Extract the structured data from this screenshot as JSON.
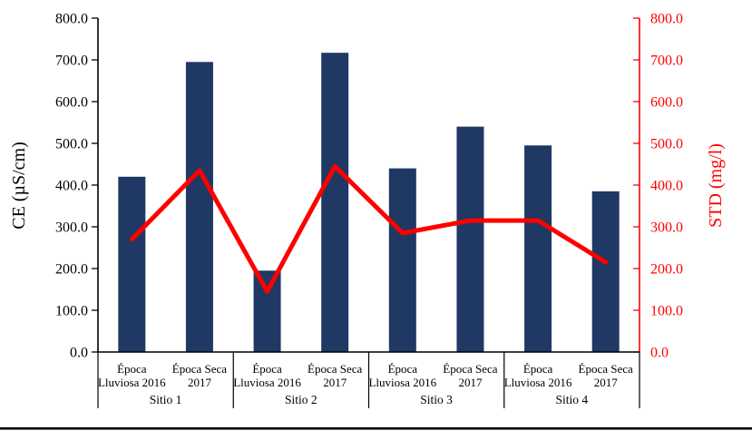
{
  "chart_data": {
    "type": "bar",
    "combo": "bar+line",
    "title": "",
    "legend": false,
    "grid": false,
    "groups": [
      "Sitio 1",
      "Sitio 2",
      "Sitio 3",
      "Sitio 4"
    ],
    "subcategories": [
      {
        "lines": [
          "Época",
          "Lluviosa 2016"
        ],
        "label": "Época Lluviosa 2016"
      },
      {
        "lines": [
          "Época Seca",
          "2017"
        ],
        "label": "Época Seca 2017"
      }
    ],
    "categories": [
      "Sitio 1 / Época Lluviosa 2016",
      "Sitio 1 / Época Seca 2017",
      "Sitio 2 / Época Lluviosa 2016",
      "Sitio 2 / Época Seca 2017",
      "Sitio 3 / Época Lluviosa 2016",
      "Sitio 3 / Época Seca 2017",
      "Sitio 4 / Época Lluviosa 2016",
      "Sitio 4 / Época Seca 2017"
    ],
    "series": [
      {
        "name": "CE (µS/cm)",
        "type": "bar",
        "axis": "left",
        "color": "#1f3864",
        "values": [
          420,
          695,
          195,
          717,
          440,
          540,
          495,
          385
        ]
      },
      {
        "name": "STD (mg/l)",
        "type": "line",
        "axis": "right",
        "color": "#ff0000",
        "values": [
          270,
          435,
          145,
          445,
          285,
          315,
          315,
          215
        ]
      }
    ],
    "left_axis": {
      "title": "CE (µS/cm)",
      "min": 0,
      "max": 800,
      "step": 100,
      "color": "#000000",
      "tick_labels": [
        "0.0",
        "100.0",
        "200.0",
        "300.0",
        "400.0",
        "500.0",
        "600.0",
        "700.0",
        "800.0"
      ]
    },
    "right_axis": {
      "title": "STD (mg/l)",
      "min": 0,
      "max": 800,
      "step": 100,
      "color": "#ff0000",
      "tick_labels": [
        "0.0",
        "100.0",
        "200.0",
        "300.0",
        "400.0",
        "500.0",
        "600.0",
        "700.0",
        "800.0"
      ]
    }
  }
}
